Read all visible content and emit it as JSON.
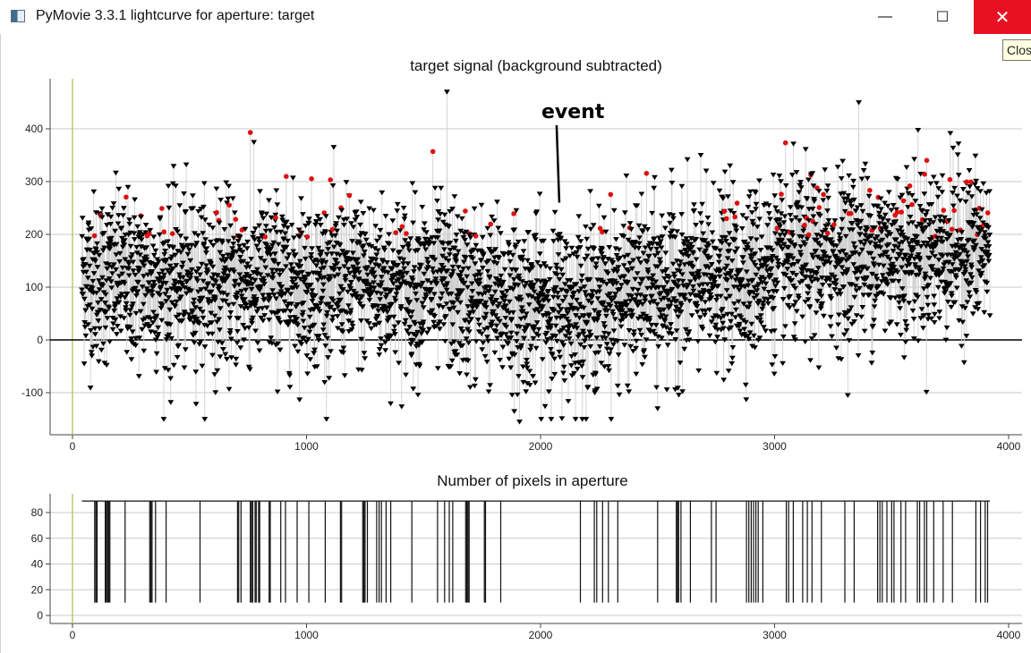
{
  "window": {
    "title": "PyMovie 3.3.1 lightcurve for aperture: target",
    "minimize_glyph": "—",
    "maximize_glyph": "☐",
    "close_glyph": "✕",
    "close_tooltip": "Close",
    "icons": {
      "app": "app-icon",
      "minimize": "minimize-icon",
      "maximize": "maximize-icon",
      "close": "close-icon"
    }
  },
  "chart_data": [
    {
      "type": "scatter",
      "title": "target signal (background subtracted)",
      "xlabel": "",
      "ylabel": "",
      "xlim": [
        -100,
        4050
      ],
      "ylim": [
        -180,
        490
      ],
      "xticks": [
        0,
        1000,
        2000,
        3000,
        4000
      ],
      "xtick_labels": [
        "0",
        "1000",
        "2000",
        "3000",
        "4000"
      ],
      "yticks": [
        -100,
        0,
        100,
        200,
        300,
        400
      ],
      "ytick_labels": [
        "-100",
        "0",
        "100",
        "200",
        "300",
        "400"
      ],
      "grid": "horizontal",
      "zero_line": true,
      "vertical_marker_x": 0,
      "x_range": [
        40,
        3920
      ],
      "point_count": 3880,
      "series": [
        {
          "marker": "triangle-down",
          "color": "#000000",
          "line_color": "#cfcfcf",
          "trend": [
            [
              40,
              120
            ],
            [
              500,
              110
            ],
            [
              1000,
              115
            ],
            [
              1500,
              105
            ],
            [
              1800,
              80
            ],
            [
              2100,
              60
            ],
            [
              2400,
              95
            ],
            [
              2800,
              120
            ],
            [
              3100,
              150
            ],
            [
              3500,
              170
            ],
            [
              3920,
              175
            ]
          ],
          "spread_sd": 80
        },
        {
          "marker": "circle",
          "color": "#e01010",
          "description": "points above threshold",
          "threshold": 195
        }
      ],
      "annotation": {
        "text": "event",
        "x": 2080,
        "y": 250
      },
      "notable_points": [
        {
          "x": 1600,
          "y": 470
        },
        {
          "x": 3360,
          "y": 450
        },
        {
          "x": 760,
          "y": 393,
          "red": true
        },
        {
          "x": 1540,
          "y": 357,
          "red": true
        },
        {
          "x": 1910,
          "y": -155
        },
        {
          "x": 2500,
          "y": -130
        },
        {
          "x": 420,
          "y": -118
        }
      ]
    },
    {
      "type": "line",
      "title": "Number of pixels in aperture",
      "xlabel": "",
      "ylabel": "",
      "xlim": [
        -100,
        4050
      ],
      "ylim": [
        -5,
        96
      ],
      "xticks": [
        0,
        1000,
        2000,
        3000,
        4000
      ],
      "xtick_labels": [
        "0",
        "1000",
        "2000",
        "3000",
        "4000"
      ],
      "yticks": [
        0,
        20,
        40,
        60,
        80
      ],
      "ytick_labels": [
        "0",
        "20",
        "40",
        "60",
        "80"
      ],
      "grid": "horizontal",
      "baseline_value": 89,
      "dip_value": 10,
      "dip_x": [
        95,
        100,
        105,
        140,
        145,
        150,
        155,
        160,
        225,
        330,
        335,
        340,
        355,
        400,
        545,
        705,
        710,
        720,
        760,
        765,
        770,
        780,
        785,
        795,
        800,
        840,
        845,
        890,
        910,
        960,
        1010,
        1080,
        1145,
        1150,
        1240,
        1245,
        1250,
        1260,
        1300,
        1310,
        1320,
        1340,
        1360,
        1450,
        1560,
        1590,
        1610,
        1625,
        1680,
        1685,
        1690,
        1695,
        1760,
        1765,
        1830,
        2170,
        2230,
        2240,
        2265,
        2290,
        2330,
        2500,
        2580,
        2585,
        2590,
        2600,
        2640,
        2730,
        2750,
        2880,
        2890,
        2900,
        2910,
        2920,
        2930,
        2950,
        3050,
        3060,
        3080,
        3120,
        3140,
        3160,
        3200,
        3300,
        3340,
        3440,
        3450,
        3460,
        3480,
        3500,
        3510,
        3540,
        3560,
        3610,
        3620,
        3640,
        3650,
        3680,
        3720,
        3760,
        3860,
        3880,
        3900,
        3910
      ]
    }
  ]
}
